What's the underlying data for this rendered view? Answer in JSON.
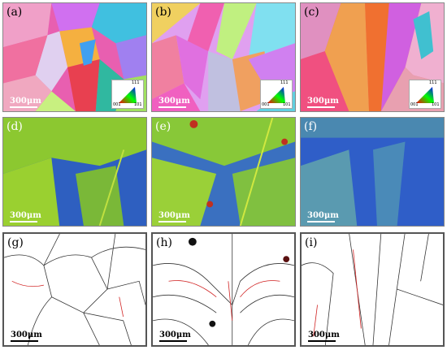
{
  "panels": [
    {
      "id": "a",
      "label": "(a)",
      "scale": "300μm",
      "type": "ipf"
    },
    {
      "id": "b",
      "label": "(b)",
      "scale": "300μm",
      "type": "ipf"
    },
    {
      "id": "c",
      "label": "(c)",
      "scale": "300μm",
      "type": "ipf"
    },
    {
      "id": "d",
      "label": "(d)",
      "scale": "300μm",
      "type": "kam"
    },
    {
      "id": "e",
      "label": "(e)",
      "scale": "300μm",
      "type": "kam"
    },
    {
      "id": "f",
      "label": "(f)",
      "scale": "300μm",
      "type": "kam"
    },
    {
      "id": "g",
      "label": "(g)",
      "scale": "300μm",
      "type": "gb"
    },
    {
      "id": "h",
      "label": "(h)",
      "scale": "300μm",
      "type": "gb"
    },
    {
      "id": "i",
      "label": "(i)",
      "scale": "300μm",
      "type": "gb"
    }
  ],
  "ipf_legend": {
    "top": "111",
    "left": "001",
    "right": "101"
  }
}
